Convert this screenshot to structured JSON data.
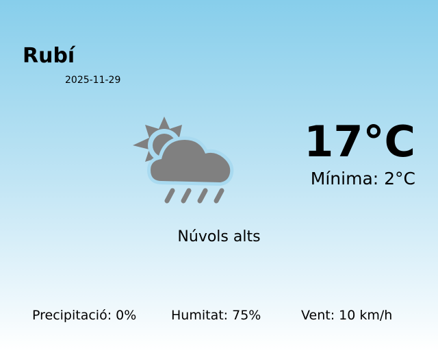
{
  "location": {
    "city": "Rubí",
    "date": "2025-11-29"
  },
  "current": {
    "temperature": "17°C",
    "minimum": "Mínima: 2°C",
    "condition": "Núvols alts",
    "icon": "partly-cloudy-rain-icon",
    "icon_color": "#808080"
  },
  "stats": {
    "precipitation": "Precipitació: 0%",
    "humidity": "Humitat: 75%",
    "wind": "Vent: 10 km/h"
  },
  "colors": {
    "background_top": "#87CEEB",
    "background_bottom": "#ffffff"
  }
}
